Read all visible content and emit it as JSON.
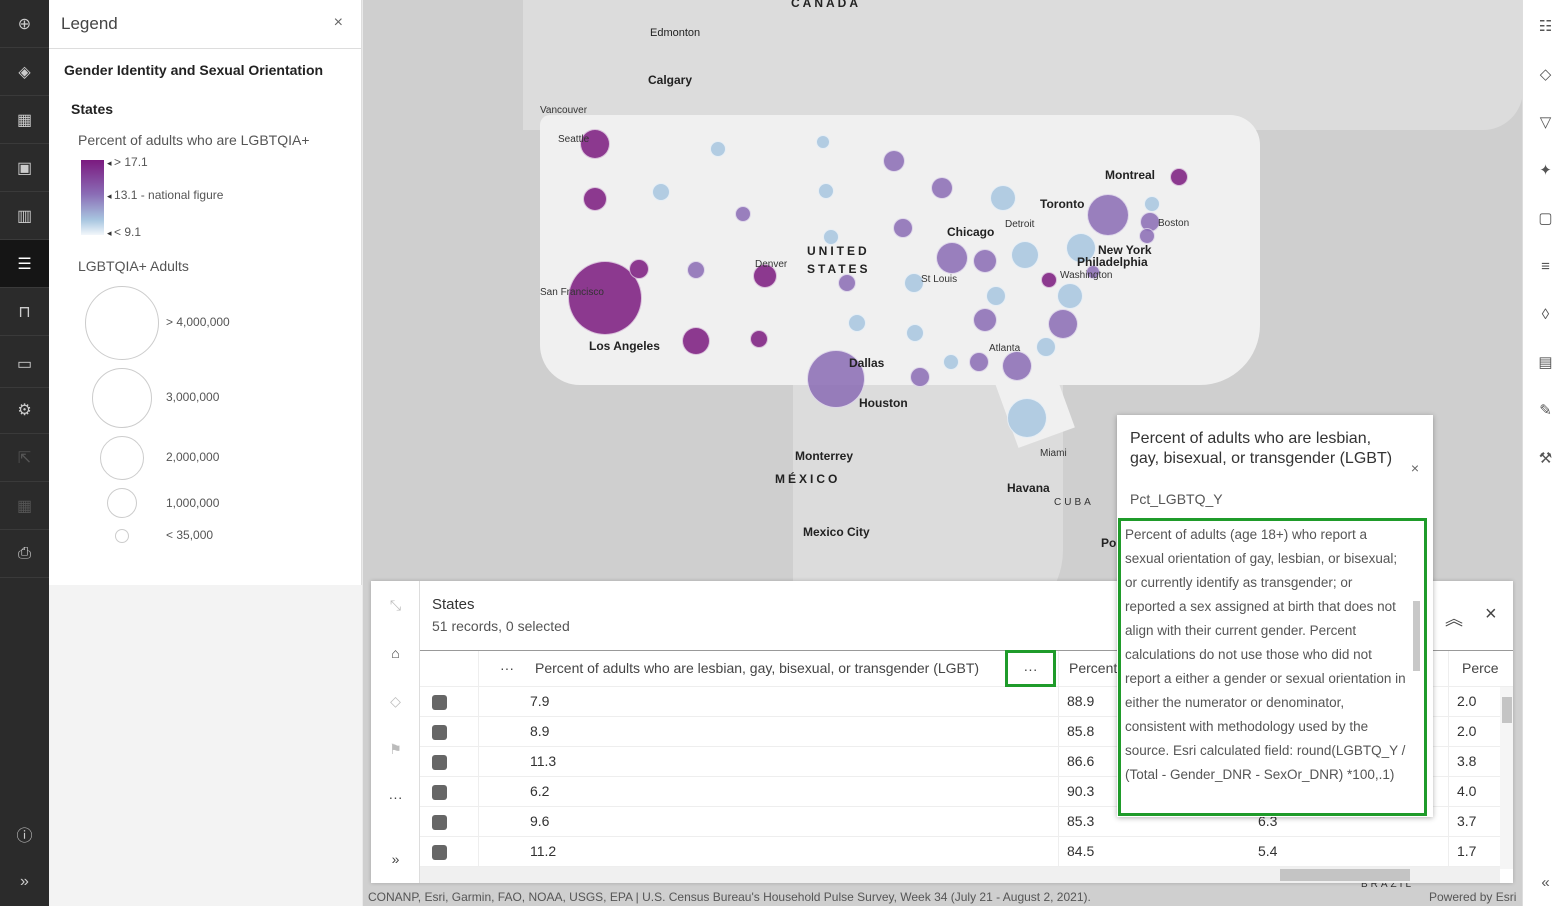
{
  "legend": {
    "title": "Legend",
    "layer_group": "Gender Identity and Sexual Orientation",
    "layer": "States",
    "color_title": "Percent of adults who are LGBTQIA+",
    "color_stops": [
      "> 17.1",
      "13.1 - national figure",
      "< 9.1"
    ],
    "size_title": "LGBTQIA+ Adults",
    "size_stops": [
      "> 4,000,000",
      "3,000,000",
      "2,000,000",
      "1,000,000",
      "< 35,000"
    ]
  },
  "map": {
    "labels": [
      "CANADA",
      "Edmonton",
      "Calgary",
      "Vancouver",
      "Seattle",
      "San Francisco",
      "Los Angeles",
      "Denver",
      "UNITED",
      "STATES",
      "Dallas",
      "Houston",
      "Chicago",
      "St Louis",
      "Detroit",
      "Toronto",
      "Montreal",
      "Boston",
      "New York",
      "Philadelphia",
      "Washington",
      "Atlanta",
      "Miami",
      "Havana",
      "CUBA",
      "Monterrey",
      "MÉXICO",
      "Mexico City",
      "BRAZIL",
      "Po"
    ],
    "colors": {
      "dark": "#7b1a7f",
      "mid": "#8a6cb5",
      "light": "#a8c6e0"
    }
  },
  "table": {
    "title": "States",
    "subtitle": "51 records, 0 selected",
    "headers": [
      "Percent of adults who are lesbian, gay, bisexual, or transgender (LGBT)",
      "Percent",
      "Perce"
    ],
    "rows": [
      [
        "7.9",
        "88.9",
        "",
        "2.0"
      ],
      [
        "8.9",
        "85.8",
        "",
        "2.0"
      ],
      [
        "11.3",
        "86.6",
        "",
        "3.8"
      ],
      [
        "6.2",
        "90.3",
        "",
        "4.0"
      ],
      [
        "9.6",
        "85.3",
        "6.3",
        "3.7"
      ],
      [
        "11.2",
        "84.5",
        "5.4",
        "1.7"
      ]
    ]
  },
  "popup": {
    "title": "Percent of adults who are lesbian, gay, bisexual, or transgender (LGBT)",
    "field": "Pct_LGBTQ_Y",
    "description": "Percent of adults (age 18+) who report a sexual orientation of gay, lesbian, or bisexual; or currently identify as transgender; or reported a sex assigned at birth that does not align with their current gender. Percent calculations do not use those who did not report a either a gender or sexual orientation in either the numerator or denominator, consistent with methodology used by the source. Esri calculated field: round(LGBTQ_Y / (Total - Gender_DNR - SexOr_DNR) *100,.1)"
  },
  "attribution": "CONANP, Esri, Garmin, FAO, NOAA, USGS, EPA | U.S. Census Bureau's Household Pulse Survey, Week 34 (July 21 - August 2, 2021).",
  "powered_by": "Powered by Esri",
  "icons": {
    "dots": "···",
    "close": "×"
  }
}
